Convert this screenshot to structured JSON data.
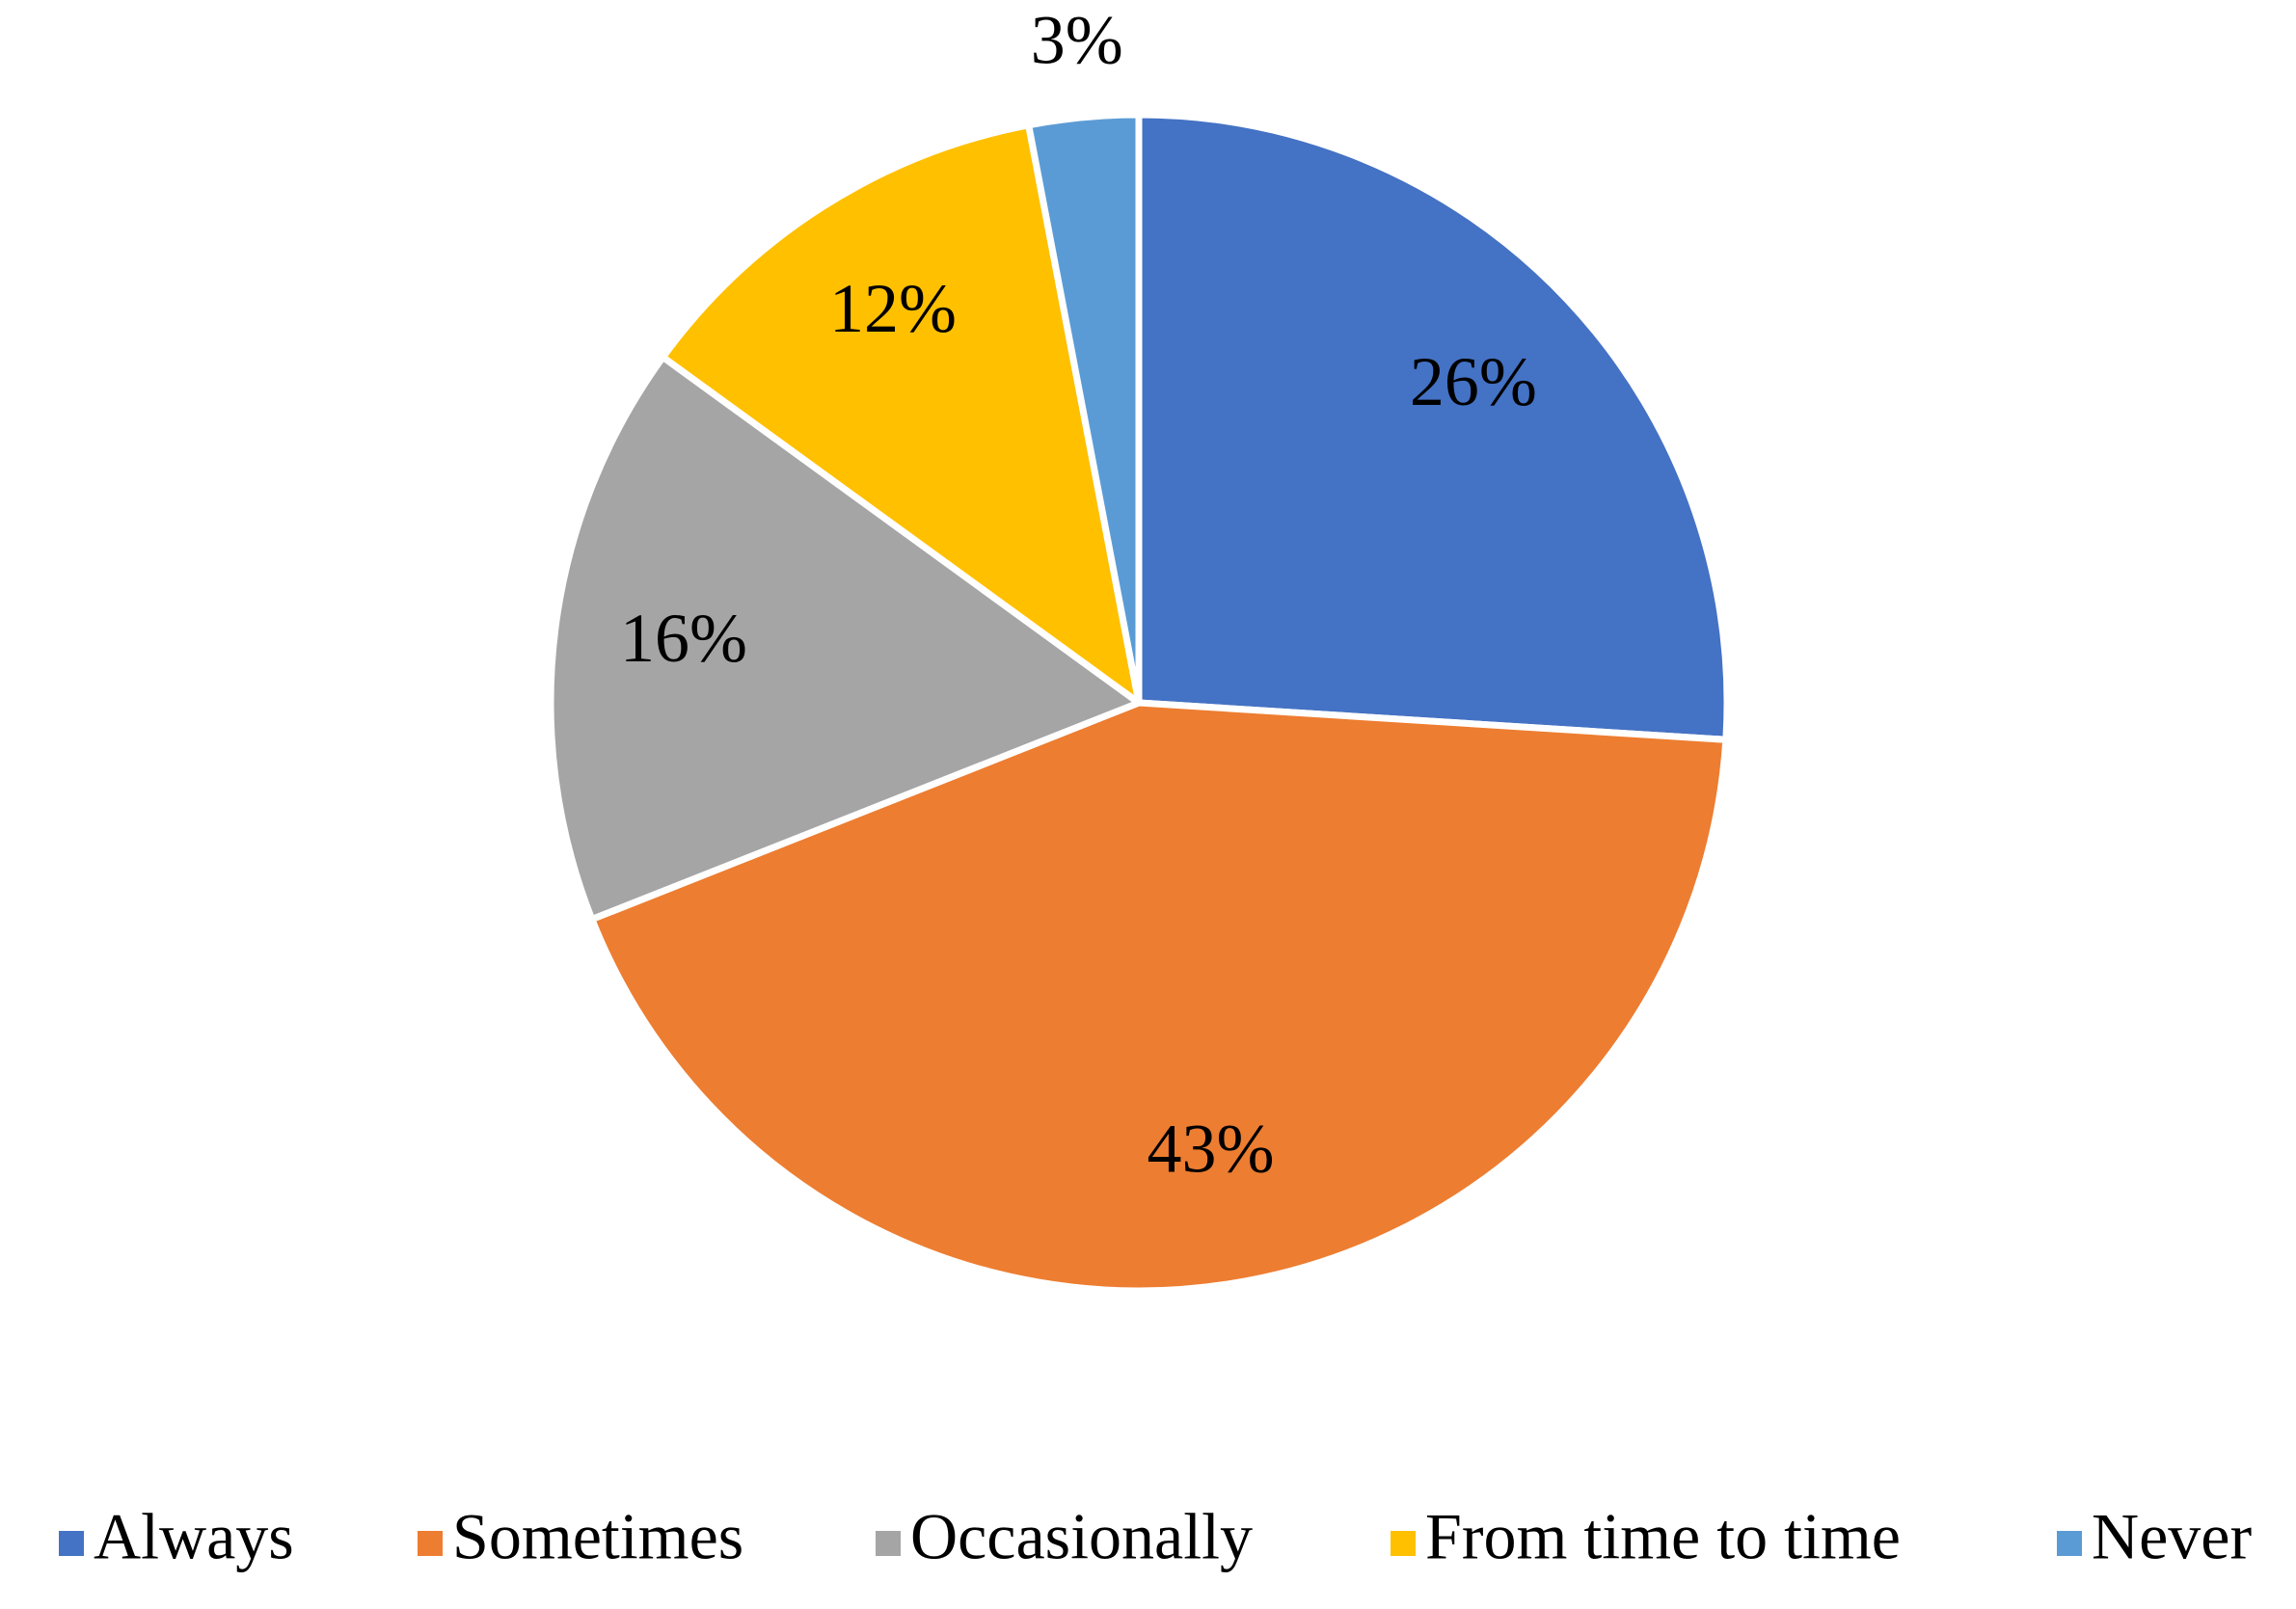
{
  "chart_data": {
    "type": "pie",
    "categories": [
      "Always",
      "Sometimes",
      "Occasionally",
      "From time to time",
      "Never"
    ],
    "values": [
      26,
      43,
      16,
      12,
      3
    ],
    "value_labels": [
      "26%",
      "43%",
      "16%",
      "12%",
      "3%"
    ],
    "colors": [
      "#4472c4",
      "#ed7d31",
      "#a5a5a5",
      "#ffc000",
      "#5b9bd5"
    ],
    "legend": "bottom"
  }
}
